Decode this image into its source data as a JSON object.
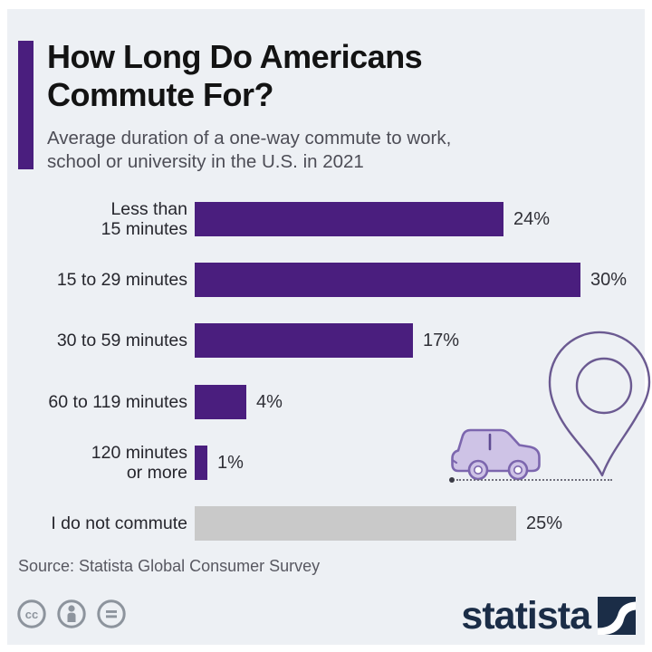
{
  "header": {
    "title_line1": "How Long Do Americans",
    "title_line2": "Commute For?",
    "subtitle": "Average duration of a one-way commute to work, school or university in the U.S. in 2021"
  },
  "chart_data": {
    "type": "bar",
    "orientation": "horizontal",
    "title": "How Long Do Americans Commute For?",
    "subtitle": "Average duration of a one-way commute to work, school or university in the U.S. in 2021",
    "unit": "%",
    "xlim": [
      0,
      30.5
    ],
    "grid": false,
    "legend": false,
    "categories": [
      "Less than 15 minutes",
      "15 to 29 minutes",
      "30 to 59 minutes",
      "60 to 119 minutes",
      "120 minutes or more",
      "I do not commute"
    ],
    "values": [
      24,
      30,
      17,
      4,
      1,
      25
    ],
    "rows": [
      {
        "label_lines": [
          "Less than",
          "15 minutes"
        ],
        "value": 24,
        "display": "24%",
        "bar_color": "purple"
      },
      {
        "label_lines": [
          "15 to 29 minutes"
        ],
        "value": 30,
        "display": "30%",
        "bar_color": "purple"
      },
      {
        "label_lines": [
          "30 to 59 minutes"
        ],
        "value": 17,
        "display": "17%",
        "bar_color": "purple"
      },
      {
        "label_lines": [
          "60 to 119 minutes"
        ],
        "value": 4,
        "display": "4%",
        "bar_color": "purple"
      },
      {
        "label_lines": [
          "120 minutes",
          "or more"
        ],
        "value": 1,
        "display": "1%",
        "bar_color": "purple"
      },
      {
        "label_lines": [
          "I do not commute"
        ],
        "value": 25,
        "display": "25%",
        "bar_color": "gray"
      }
    ]
  },
  "footer": {
    "source": "Source: Statista Global Consumer Survey",
    "license_icons": [
      "cc-icon",
      "attribution-icon",
      "nd-icon"
    ],
    "brand_text": "statista"
  },
  "icons": {
    "car": "car-icon",
    "map_pin": "map-pin-icon",
    "brand_mark": "statista-logo-mark"
  },
  "colors": {
    "bar_purple": "#4A1E7E",
    "bar_gray": "#C9C9C9",
    "accent": "#4A1E7E",
    "canvas": "#EDF0F4",
    "brand_navy": "#1B2D47",
    "car_fill": "#CEC3E6",
    "car_stroke": "#7C66AE",
    "pin_stroke": "#6B5A91",
    "license_gray": "#8D949D"
  }
}
